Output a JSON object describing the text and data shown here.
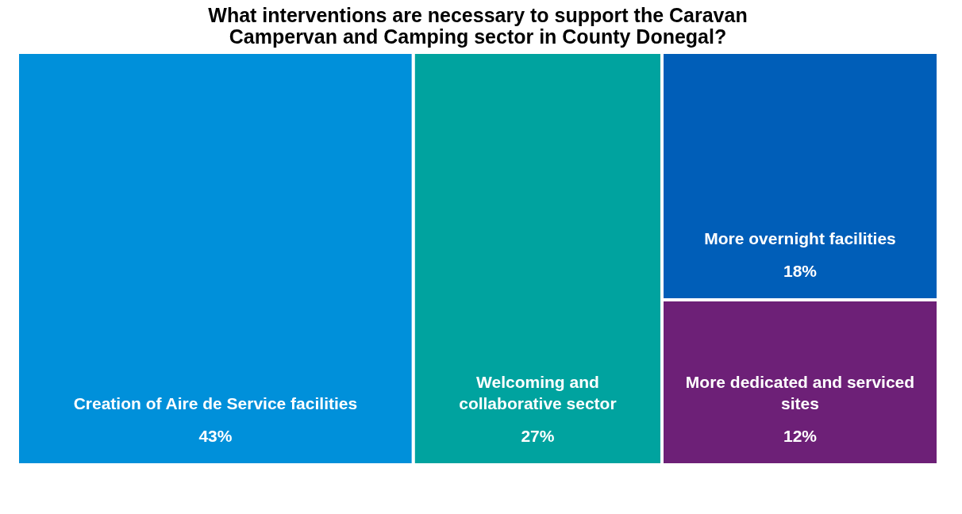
{
  "chart_data": {
    "type": "other",
    "title": "What interventions are necessary to support the Caravan Campervan and Camping sector in County Donegal?",
    "categories": [
      "Creation of Aire de Service facilities",
      "Welcoming and collaborative sector",
      "More overnight facilities",
      "More dedicated and serviced sites"
    ],
    "values": [
      43,
      27,
      18,
      12
    ],
    "value_labels": [
      "43%",
      "27%",
      "18%",
      "12%"
    ],
    "colors": [
      "#0090da",
      "#00a39f",
      "#005eb8",
      "#6d2077"
    ]
  }
}
